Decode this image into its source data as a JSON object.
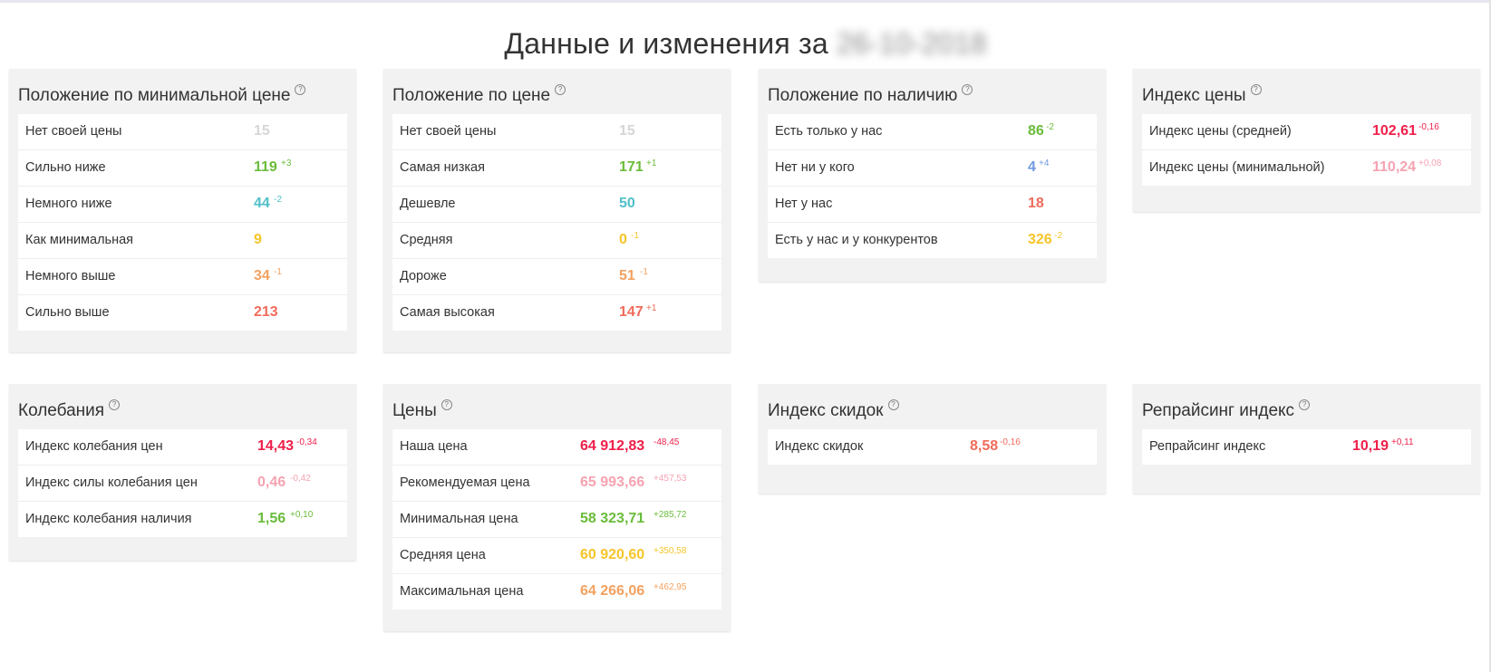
{
  "page": {
    "title_prefix": "Данные и изменения за",
    "title_date": "26-10-2018"
  },
  "help_glyph": "?",
  "panels": {
    "min_price_position": {
      "title": "Положение по минимальной цене",
      "rows": [
        {
          "label": "Нет своей цены",
          "value": "15",
          "delta": ""
        },
        {
          "label": "Сильно ниже",
          "value": "119",
          "delta": "+3"
        },
        {
          "label": "Немного ниже",
          "value": "44",
          "delta": "-2"
        },
        {
          "label": "Как минимальная",
          "value": "9",
          "delta": ""
        },
        {
          "label": "Немного выше",
          "value": "34",
          "delta": "-1"
        },
        {
          "label": "Сильно выше",
          "value": "213",
          "delta": ""
        }
      ]
    },
    "price_position": {
      "title": "Положение по цене",
      "rows": [
        {
          "label": "Нет своей цены",
          "value": "15",
          "delta": ""
        },
        {
          "label": "Самая низкая",
          "value": "171",
          "delta": "+1"
        },
        {
          "label": "Дешевле",
          "value": "50",
          "delta": ""
        },
        {
          "label": "Средняя",
          "value": "0",
          "delta": "-1"
        },
        {
          "label": "Дороже",
          "value": "51",
          "delta": "-1"
        },
        {
          "label": "Самая высокая",
          "value": "147",
          "delta": "+1"
        }
      ]
    },
    "availability_position": {
      "title": "Положение по наличию",
      "rows": [
        {
          "label": "Есть только у нас",
          "value": "86",
          "delta": "-2"
        },
        {
          "label": "Нет ни у кого",
          "value": "4",
          "delta": "+4"
        },
        {
          "label": "Нет у нас",
          "value": "18",
          "delta": ""
        },
        {
          "label": "Есть у нас и у конкурентов",
          "value": "326",
          "delta": "-2"
        }
      ]
    },
    "price_index": {
      "title": "Индекс цены",
      "rows": [
        {
          "label": "Индекс цены (средней)",
          "value": "102,61",
          "delta": "-0,16"
        },
        {
          "label": "Индекс цены (минимальной)",
          "value": "110,24",
          "delta": "+0,08"
        }
      ]
    },
    "fluctuations": {
      "title": "Колебания",
      "rows": [
        {
          "label": "Индекс колебания цен",
          "value": "14,43",
          "delta": "-0,34"
        },
        {
          "label": "Индекс силы колебания цен",
          "value": "0,46",
          "delta": "-0,42"
        },
        {
          "label": "Индекс колебания наличия",
          "value": "1,56",
          "delta": "+0,10"
        }
      ]
    },
    "prices": {
      "title": "Цены",
      "rows": [
        {
          "label": "Наша цена",
          "value": "64 912,83",
          "delta": "-48,45"
        },
        {
          "label": "Рекомендуемая цена",
          "value": "65 993,66",
          "delta": "+457,53"
        },
        {
          "label": "Минимальная цена",
          "value": "58 323,71",
          "delta": "+285,72"
        },
        {
          "label": "Средняя цена",
          "value": "60 920,60",
          "delta": "+350,58"
        },
        {
          "label": "Максимальная цена",
          "value": "64 266,06",
          "delta": "+462,95"
        }
      ]
    },
    "discount_index": {
      "title": "Индекс скидок",
      "rows": [
        {
          "label": "Индекс скидок",
          "value": "8,58",
          "delta": "-0,16"
        }
      ]
    },
    "repricing_index": {
      "title": "Репрайсинг индекс",
      "rows": [
        {
          "label": "Репрайсинг индекс",
          "value": "10,19",
          "delta": "+0,11"
        }
      ]
    }
  },
  "colors": {
    "grey": "#d6d6d6",
    "green": "#6abc3a",
    "teal": "#4fc0c8",
    "yellow": "#f5c52a",
    "orange": "#f2a15f",
    "red": "#f06b5b",
    "blue": "#6f9ae0",
    "crimson": "#ef1f4a",
    "pink": "#f5a3b1"
  }
}
